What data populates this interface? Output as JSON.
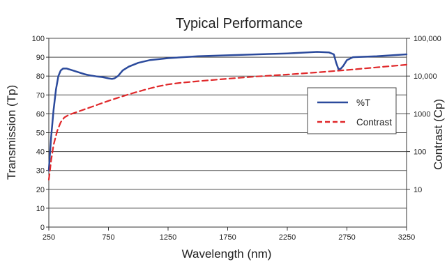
{
  "chart_data": {
    "type": "line",
    "title": "Typical Performance",
    "xlabel": "Wavelength (nm)",
    "ylabel": "Transmission (Tp)",
    "y2label": "Contrast (Cp)",
    "xlim": [
      250,
      3250
    ],
    "ylim": [
      0,
      100
    ],
    "y2lim": [
      1,
      100000
    ],
    "y2scale": "log",
    "grid": true,
    "legend_position": "right",
    "x_ticks": [
      "250",
      "750",
      "1250",
      "1750",
      "2250",
      "2750",
      "3250"
    ],
    "y_ticks": [
      "0",
      "10",
      "20",
      "30",
      "40",
      "50",
      "60",
      "70",
      "80",
      "90",
      "100"
    ],
    "y2_ticks": [
      "10",
      "100",
      "1000",
      "10,000",
      "100,000"
    ],
    "series": [
      {
        "name": "%T",
        "axis": "left",
        "color": "#2b4a9c",
        "style": "solid",
        "x": [
          250,
          270,
          290,
          310,
          330,
          350,
          370,
          400,
          450,
          500,
          550,
          600,
          650,
          700,
          750,
          780,
          800,
          830,
          870,
          920,
          1000,
          1100,
          1250,
          1500,
          1750,
          2000,
          2250,
          2500,
          2600,
          2640,
          2660,
          2680,
          2700,
          2720,
          2750,
          2800,
          3000,
          3250
        ],
        "y": [
          30,
          48,
          62,
          73,
          80,
          83,
          84,
          84,
          83,
          82,
          81,
          80.3,
          79.8,
          79.5,
          78.8,
          78.5,
          78.8,
          80,
          83,
          85,
          87,
          88.5,
          89.5,
          90.5,
          91,
          91.5,
          92,
          92.8,
          92.5,
          91.5,
          87,
          83.5,
          84,
          85.5,
          88.5,
          90,
          90.5,
          91.5
        ]
      },
      {
        "name": "Contrast",
        "axis": "right",
        "color": "#e0282a",
        "style": "dashed",
        "x": [
          250,
          260,
          270,
          290,
          320,
          350,
          380,
          420,
          480,
          560,
          650,
          750,
          850,
          950,
          1050,
          1150,
          1250,
          1350,
          1500,
          1750,
          2000,
          2250,
          2500,
          2750,
          3000,
          3250
        ],
        "y": [
          18,
          32,
          60,
          150,
          350,
          600,
          800,
          950,
          1100,
          1350,
          1700,
          2200,
          2800,
          3500,
          4300,
          5200,
          6000,
          6600,
          7300,
          8500,
          9800,
          11000,
          12500,
          14500,
          17000,
          20000
        ]
      }
    ]
  }
}
